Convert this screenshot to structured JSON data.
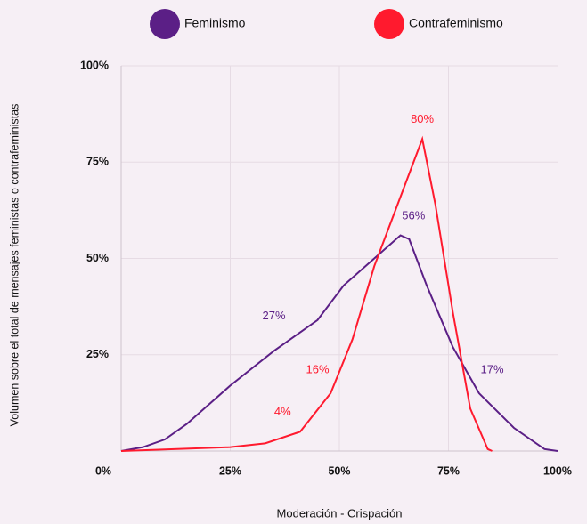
{
  "chart_data": {
    "type": "line",
    "x_label": "Moderación - Crispación",
    "y_label": "Volumen sobre el total de mensajes feministas o contrafeministas",
    "xlim": [
      0,
      100
    ],
    "ylim": [
      0,
      100
    ],
    "xticks": [
      {
        "value": 25,
        "label": "25%"
      },
      {
        "value": 50,
        "label": "50%"
      },
      {
        "value": 75,
        "label": "75%"
      },
      {
        "value": 100,
        "label": "100%"
      }
    ],
    "yticks": [
      {
        "value": 0,
        "label": "0%"
      },
      {
        "value": 25,
        "label": "25%"
      },
      {
        "value": 50,
        "label": "50%"
      },
      {
        "value": 75,
        "label": "75%"
      },
      {
        "value": 100,
        "label": "100%"
      }
    ],
    "grid": true,
    "series": [
      {
        "name": "Feminismo",
        "color": "#5b1f86",
        "x": [
          0,
          5,
          10,
          15,
          25,
          35,
          45,
          51,
          58,
          64,
          66,
          70,
          76,
          82,
          90,
          97,
          100
        ],
        "values": [
          0,
          1,
          3,
          7,
          17,
          26,
          34,
          43,
          50,
          56,
          55,
          43,
          27,
          15,
          6,
          0.5,
          0
        ],
        "annotations": [
          {
            "text": "27%",
            "x": 35,
            "y": 35
          },
          {
            "text": "56%",
            "x": 67,
            "y": 61
          },
          {
            "text": "17%",
            "x": 85,
            "y": 21
          }
        ]
      },
      {
        "name": "Contrafeminismo",
        "color": "#ff1a2e",
        "x": [
          0,
          25,
          33,
          41,
          48,
          53,
          58,
          64,
          69,
          72,
          76,
          80,
          84,
          85
        ],
        "values": [
          0,
          1,
          2,
          5,
          15,
          29,
          48,
          66,
          81,
          64,
          36,
          11,
          0.5,
          0
        ],
        "annotations": [
          {
            "text": "80%",
            "x": 69,
            "y": 86
          },
          {
            "text": "16%",
            "x": 45,
            "y": 21
          },
          {
            "text": "4%",
            "x": 37,
            "y": 10
          }
        ]
      }
    ]
  }
}
